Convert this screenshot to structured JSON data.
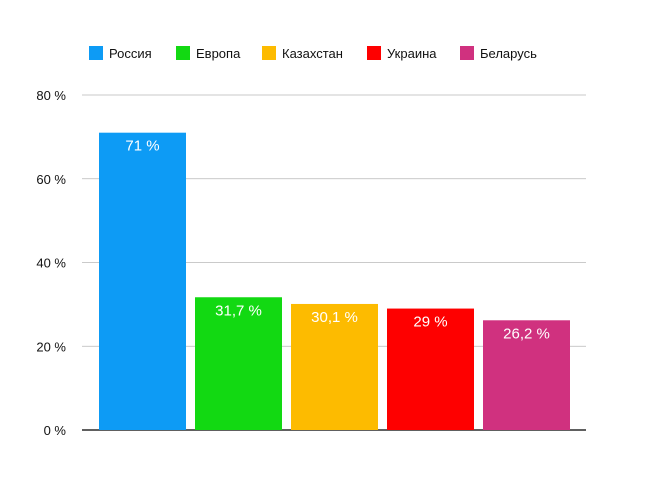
{
  "chart_data": {
    "type": "bar",
    "categories": [
      "Россия",
      "Европа",
      "Казахстан",
      "Украина",
      "Беларусь"
    ],
    "values": [
      71,
      31.7,
      30.1,
      29,
      26.2
    ],
    "value_labels": [
      "71 %",
      "31,7 %",
      "30,1 %",
      "29 %",
      "26,2 %"
    ],
    "colors": [
      "#0d9bf5",
      "#12d912",
      "#fdbb00",
      "#fe0000",
      "#d0317f"
    ],
    "legend": {
      "placement": "top-left",
      "items": [
        "Россия",
        "Европа",
        "Казахстан",
        "Украина",
        "Беларусь"
      ]
    },
    "yticks": [
      0,
      20,
      40,
      60,
      80
    ],
    "ytick_labels": [
      "0 %",
      "20 %",
      "40 %",
      "60 %",
      "80 %"
    ],
    "ylim": [
      0,
      80
    ],
    "grid": true,
    "title": "",
    "xlabel": "",
    "ylabel": ""
  }
}
